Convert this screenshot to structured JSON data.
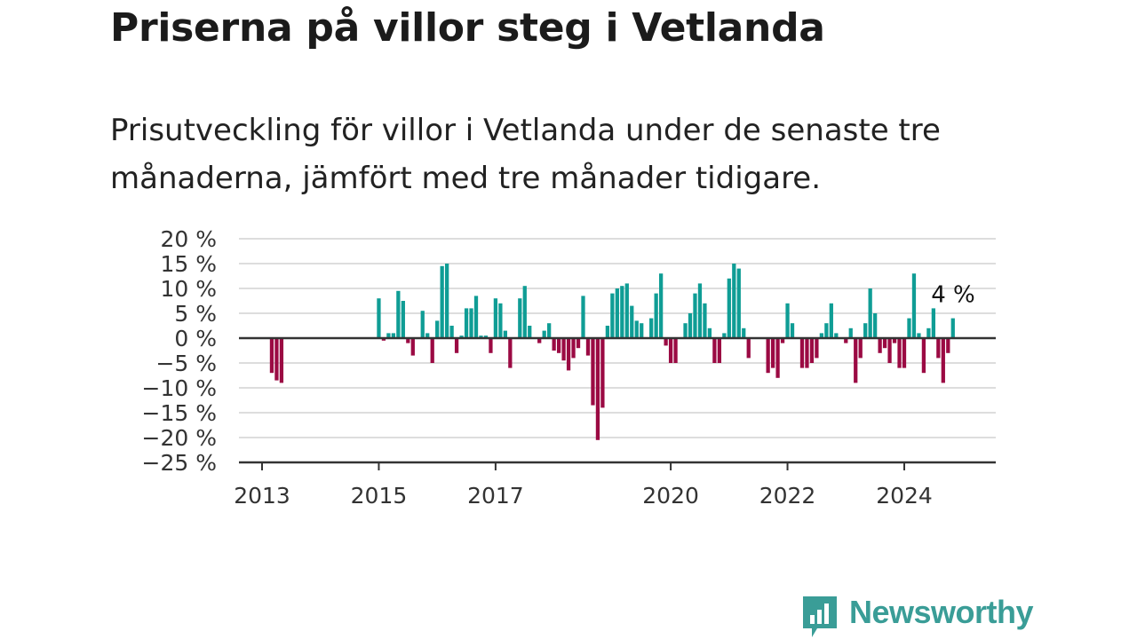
{
  "header": {
    "title": "Priserna på villor steg i Vetlanda",
    "subtitle": "Prisutveckling för villor i Vetlanda under de senaste tre månaderna, jämfört med tre månader tidigare."
  },
  "brand": {
    "name": "Newsworthy",
    "color": "#3a9d97"
  },
  "colors": {
    "positive": "#0f9d95",
    "negative": "#9b0a43",
    "grid": "#dddddd",
    "axis": "#333333",
    "text": "#333333"
  },
  "chart_data": {
    "type": "bar",
    "title": "Priserna på villor steg i Vetlanda",
    "subtitle": "Prisutveckling för villor i Vetlanda under de senaste tre månaderna, jämfört med tre månader tidigare.",
    "xlabel": "",
    "ylabel": "",
    "ylim": [
      -25,
      20
    ],
    "yticks": [
      20,
      15,
      10,
      5,
      0,
      -5,
      -10,
      -15,
      -20,
      -25
    ],
    "ytick_labels": [
      "20 %",
      "15 %",
      "10 %",
      "5 %",
      "0 %",
      "−5 %",
      "−10 %",
      "−15 %",
      "−20 %",
      "−25 %"
    ],
    "xticks": [
      "2013",
      "2015",
      "2017",
      "2020",
      "2022",
      "2024"
    ],
    "grid": true,
    "last_value_label": "4 %",
    "series": [
      {
        "x": [
          "2013-03",
          "2013-04",
          "2013-05",
          "2015-01",
          "2015-02",
          "2015-03",
          "2015-04",
          "2015-05",
          "2015-06",
          "2015-07",
          "2015-08",
          "2015-09",
          "2015-10",
          "2015-11",
          "2015-12",
          "2016-01",
          "2016-02",
          "2016-03",
          "2016-04",
          "2016-05",
          "2016-06",
          "2016-07",
          "2016-08",
          "2016-09",
          "2016-10",
          "2016-11",
          "2016-12",
          "2017-01",
          "2017-02",
          "2017-03",
          "2017-04",
          "2017-05",
          "2017-06",
          "2017-07",
          "2017-08",
          "2017-09",
          "2017-10",
          "2017-11",
          "2017-12",
          "2018-01",
          "2018-02",
          "2018-03",
          "2018-04",
          "2018-05",
          "2018-06",
          "2018-07",
          "2018-08",
          "2018-09",
          "2018-10",
          "2018-11",
          "2018-12",
          "2019-01",
          "2019-02",
          "2019-03",
          "2019-04",
          "2019-05",
          "2019-06",
          "2019-07",
          "2019-08",
          "2019-09",
          "2019-10",
          "2019-11",
          "2019-12",
          "2020-01",
          "2020-02",
          "2020-03",
          "2020-04",
          "2020-05",
          "2020-06",
          "2020-07",
          "2020-08",
          "2020-09",
          "2020-10",
          "2020-11",
          "2020-12",
          "2021-01",
          "2021-02",
          "2021-03",
          "2021-04",
          "2021-05",
          "2021-06",
          "2021-07",
          "2021-08",
          "2021-09",
          "2021-10",
          "2021-11",
          "2021-12",
          "2022-01",
          "2022-02",
          "2022-03",
          "2022-04",
          "2022-05",
          "2022-06",
          "2022-07",
          "2022-08",
          "2022-09",
          "2022-10",
          "2022-11",
          "2022-12",
          "2023-01",
          "2023-02",
          "2023-03",
          "2023-04",
          "2023-05",
          "2023-06",
          "2023-07",
          "2023-08",
          "2023-09",
          "2023-10",
          "2023-11",
          "2023-12",
          "2024-01",
          "2024-02",
          "2024-03",
          "2024-04",
          "2024-05",
          "2024-06",
          "2024-07",
          "2024-08",
          "2024-09",
          "2024-10",
          "2024-11"
        ],
        "values": [
          -7,
          -8.5,
          -9,
          8,
          -0.5,
          1,
          1,
          9.5,
          7.5,
          -1,
          -3.5,
          0,
          5.5,
          1,
          -5,
          3.5,
          14.5,
          15,
          2.5,
          -3,
          0.5,
          6,
          6,
          8.5,
          0.5,
          0.5,
          -3,
          8,
          7,
          1.5,
          -6,
          0,
          8,
          10.5,
          2.5,
          0,
          -1,
          1.5,
          3,
          -2.5,
          -3,
          -4.5,
          -6.5,
          -4,
          -2,
          8.5,
          -3.5,
          -13.5,
          -20.5,
          -14,
          2.5,
          9,
          10,
          10.5,
          11,
          6.5,
          3.5,
          3,
          0,
          4,
          9,
          13,
          -1.5,
          -5,
          -5,
          0,
          3,
          5,
          9,
          11,
          7,
          2,
          -5,
          -5,
          1,
          12,
          15,
          14,
          2,
          -4,
          0,
          0,
          0,
          -7,
          -6,
          -8,
          -1,
          7,
          3,
          0,
          -6,
          -6,
          -5,
          -4,
          1,
          3,
          7,
          1,
          0,
          -1,
          2,
          -9,
          -4,
          3,
          10,
          5,
          -3,
          -2,
          -5,
          -1,
          -6,
          -6,
          4,
          13,
          1,
          -7,
          2,
          6,
          -4,
          -9,
          -3,
          4
        ]
      }
    ]
  }
}
